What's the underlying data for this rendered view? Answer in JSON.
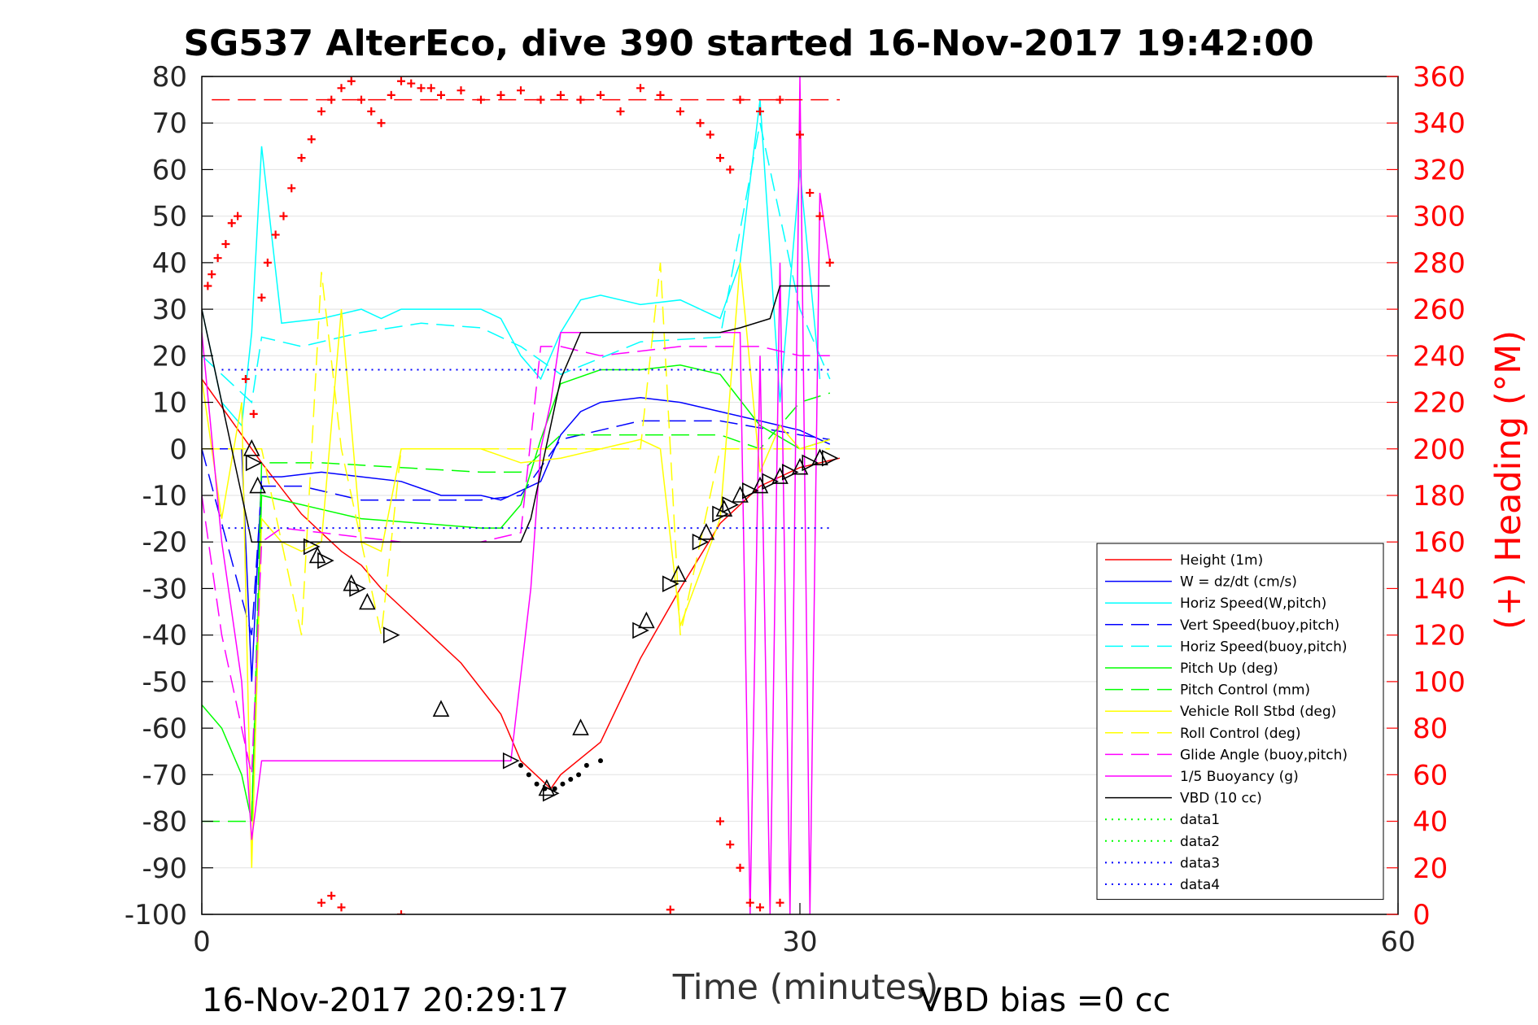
{
  "chart_data": {
    "type": "line",
    "title": "SG537 AlterEco, dive 390 started 16-Nov-2017 19:42:00",
    "xlabel": "Time (minutes)",
    "ylabel_right": "(+) Heading (°M)",
    "xlim": [
      0,
      60
    ],
    "ylim": [
      -100,
      80
    ],
    "ylim_right": [
      0,
      360
    ],
    "xticks": [
      0,
      30,
      60
    ],
    "yticks": [
      80,
      70,
      60,
      50,
      40,
      30,
      20,
      10,
      0,
      -10,
      -20,
      -30,
      -40,
      -50,
      -60,
      -70,
      -80,
      -90,
      -100
    ],
    "yticks_right": [
      360,
      340,
      320,
      300,
      280,
      260,
      240,
      220,
      200,
      180,
      160,
      140,
      120,
      100,
      80,
      60,
      40,
      20,
      0
    ],
    "grid": "horizontal",
    "legend_position": "bottom-right",
    "footer_left": "16-Nov-2017 20:29:17",
    "footer_right": "VBD bias =0 cc",
    "colors": {
      "height": "#ff0000",
      "w": "#0000ff",
      "horiz": "#00ffff",
      "pitch": "#00ff00",
      "roll": "#ffff00",
      "glide": "#ff00ff",
      "vbd": "#000000",
      "data3": "#0000ff",
      "heading": "#ff0000"
    },
    "series": [
      {
        "name": "Height (1m)",
        "color": "#ff0000",
        "style": "solid",
        "x": [
          0,
          2.5,
          3,
          5,
          7,
          8,
          9,
          11,
          13,
          15,
          16,
          17.5,
          18,
          20,
          22,
          24,
          26,
          28,
          30,
          32
        ],
        "y": [
          15,
          0,
          -3,
          -14,
          -22,
          -25,
          -30,
          -38,
          -46,
          -57,
          -67,
          -73,
          -70,
          -63,
          -45,
          -30,
          -16,
          -8,
          -4,
          -2
        ]
      },
      {
        "name": "W = dz/dt (cm/s)",
        "color": "#0000ff",
        "style": "solid",
        "x": [
          0,
          1,
          2,
          2.5,
          3,
          4,
          6,
          8,
          10,
          12,
          14,
          15,
          16,
          17,
          18,
          19,
          20,
          22,
          24,
          26,
          28,
          30,
          31,
          31.5
        ],
        "y": [
          0,
          0,
          0,
          -50,
          -6,
          -6,
          -5,
          -6,
          -7,
          -10,
          -10,
          -11,
          -9,
          -7,
          3,
          8,
          10,
          11,
          10,
          8,
          6,
          4,
          2,
          1
        ]
      },
      {
        "name": "Horiz Speed(W,pitch)",
        "color": "#00ffff",
        "style": "solid",
        "x": [
          0,
          1,
          2,
          2.5,
          3,
          4,
          6,
          8,
          9,
          10,
          11,
          12,
          13,
          14,
          15,
          16,
          17,
          18,
          19,
          20,
          22,
          24,
          26,
          27,
          28,
          29,
          30,
          31
        ],
        "y": [
          30,
          10,
          5,
          25,
          65,
          27,
          28,
          30,
          28,
          30,
          30,
          30,
          30,
          30,
          28,
          20,
          15,
          25,
          32,
          33,
          31,
          32,
          28,
          40,
          75,
          10,
          60,
          15
        ]
      },
      {
        "name": "Vert Speed(buoy,pitch)",
        "color": "#0000ff",
        "style": "dashed",
        "x": [
          0,
          2.5,
          3,
          5,
          8,
          11,
          14,
          16,
          18,
          22,
          26,
          30,
          31.5
        ],
        "y": [
          0,
          -40,
          -8,
          -8,
          -11,
          -11,
          -11,
          -10,
          2,
          6,
          6,
          3,
          2
        ]
      },
      {
        "name": "Horiz Speed(buoy,pitch)",
        "color": "#00ffff",
        "style": "dashed",
        "x": [
          0,
          2.5,
          3,
          5,
          8,
          11,
          14,
          16,
          18,
          22,
          26,
          28,
          30,
          31.5
        ],
        "y": [
          20,
          10,
          24,
          22,
          25,
          27,
          26,
          22,
          16,
          23,
          24,
          70,
          30,
          15
        ]
      },
      {
        "name": "Pitch Up (deg)",
        "color": "#00ff00",
        "style": "solid",
        "x": [
          0,
          1,
          2,
          2.5,
          3,
          5,
          8,
          11,
          14,
          15,
          16,
          17,
          18,
          20,
          22,
          24,
          26,
          28,
          30,
          31.5
        ],
        "y": [
          -55,
          -60,
          -70,
          -80,
          -10,
          -12,
          -15,
          -16,
          -17,
          -17,
          -12,
          2,
          14,
          17,
          17,
          18,
          16,
          5,
          0,
          2
        ]
      },
      {
        "name": "Pitch Control (mm)",
        "color": "#00ff00",
        "style": "dashed",
        "x": [
          0,
          2,
          2.5,
          3,
          6,
          10,
          14,
          16,
          18,
          22,
          26,
          28,
          30,
          31.5
        ],
        "y": [
          -80,
          -80,
          -80,
          -3,
          -3,
          -4,
          -5,
          -5,
          3,
          3,
          3,
          0,
          10,
          12
        ]
      },
      {
        "name": "Vehicle Roll Stbd (deg)",
        "color": "#ffff00",
        "style": "solid",
        "x": [
          0,
          1,
          2,
          2.5,
          3,
          4,
          5,
          6,
          7,
          8,
          9,
          10,
          12,
          14,
          16,
          18,
          20,
          22,
          23,
          24,
          26,
          27,
          28,
          29,
          30,
          31.5
        ],
        "y": [
          15,
          -15,
          10,
          -90,
          -15,
          -20,
          -22,
          -20,
          30,
          -20,
          -22,
          0,
          0,
          0,
          -3,
          -2,
          0,
          2,
          0,
          -38,
          -15,
          40,
          -5,
          5,
          0,
          2
        ]
      },
      {
        "name": "Roll Control (deg)",
        "color": "#ffff00",
        "style": "dashed",
        "x": [
          0,
          1,
          2,
          2.5,
          3,
          5,
          6,
          7,
          9,
          10,
          14,
          18,
          22,
          23,
          24,
          26,
          28,
          30,
          31.5
        ],
        "y": [
          0,
          0,
          0,
          0,
          0,
          -40,
          38,
          0,
          -40,
          0,
          0,
          0,
          0,
          40,
          -40,
          0,
          0,
          0,
          0
        ]
      },
      {
        "name": "Glide Angle (buoy,pitch)",
        "color": "#ff00ff",
        "style": "dashed",
        "x": [
          0,
          1,
          2,
          2.5,
          3,
          4,
          6,
          8,
          10,
          12,
          14,
          16,
          17,
          18,
          20,
          22,
          24,
          26,
          28,
          30,
          31.5
        ],
        "y": [
          -10,
          -40,
          -60,
          -70,
          -20,
          -17,
          -18,
          -19,
          -20,
          -20,
          -20,
          -18,
          22,
          22,
          20,
          21,
          22,
          22,
          22,
          20,
          20
        ]
      },
      {
        "name": "1/5 Buoyancy (g)",
        "color": "#ff00ff",
        "style": "solid",
        "x": [
          0,
          1,
          2,
          2.5,
          3,
          4,
          6,
          8,
          10,
          12,
          14,
          15.5,
          16.5,
          17,
          17.5,
          18,
          20,
          22,
          24,
          26,
          27,
          27.5,
          28,
          28.5,
          29,
          29.5,
          30,
          30.5,
          31,
          31.5
        ],
        "y": [
          25,
          -20,
          -50,
          -84,
          -67,
          -67,
          -67,
          -67,
          -67,
          -67,
          -67,
          -67,
          -30,
          0,
          10,
          25,
          25,
          25,
          25,
          25,
          25,
          -100,
          20,
          -100,
          40,
          -100,
          80,
          -100,
          55,
          40
        ]
      },
      {
        "name": "VBD (10 cc)",
        "color": "#000000",
        "style": "solid",
        "x": [
          0,
          2.5,
          3,
          10,
          15,
          16,
          16.5,
          17,
          17.5,
          18,
          18.5,
          19,
          26,
          27,
          28.5,
          29,
          30,
          31.5
        ],
        "y": [
          30,
          -20,
          -20,
          -20,
          -20,
          -20,
          -15,
          -5,
          5,
          15,
          20,
          25,
          25,
          26,
          28,
          35,
          35,
          35
        ]
      },
      {
        "name": "data1",
        "color": "#00ff00",
        "style": "dotted",
        "x": [],
        "y": []
      },
      {
        "name": "data2",
        "color": "#00ff00",
        "style": "dotted",
        "x": [],
        "y": []
      },
      {
        "name": "data3",
        "color": "#0000ff",
        "style": "dotted",
        "x": [
          1,
          31.5
        ],
        "y": [
          17,
          17
        ]
      },
      {
        "name": "data4",
        "color": "#0000ff",
        "style": "dotted",
        "x": [
          1,
          31.5
        ],
        "y": [
          -17,
          -17
        ]
      }
    ],
    "reference_lines": [
      {
        "axis": "right",
        "y": 350,
        "color": "#ff0000",
        "style": "dashed",
        "x": [
          0.5,
          32
        ]
      }
    ],
    "heading_markers": {
      "axis": "right",
      "color": "#ff0000",
      "x": [
        0.3,
        0.5,
        0.8,
        1.2,
        1.5,
        1.8,
        2.2,
        2.6,
        3,
        3.3,
        3.7,
        4.1,
        4.5,
        5,
        5.5,
        6,
        6.5,
        7,
        7.5,
        8,
        8.5,
        9,
        9.5,
        10,
        10.5,
        11,
        11.5,
        12,
        13,
        14,
        15,
        16,
        17,
        18,
        19,
        20,
        21,
        22,
        23,
        24,
        25,
        25.5,
        26,
        26.5,
        27,
        28,
        29,
        30,
        30.5,
        31,
        31.5,
        6,
        6.5,
        7,
        10,
        23.5,
        26,
        26.5,
        27,
        27.5,
        28,
        29
      ],
      "y": [
        270,
        275,
        282,
        288,
        297,
        300,
        230,
        215,
        265,
        280,
        292,
        300,
        312,
        325,
        333,
        345,
        350,
        355,
        358,
        350,
        345,
        340,
        352,
        358,
        357,
        355,
        355,
        352,
        354,
        350,
        352,
        354,
        350,
        352,
        350,
        352,
        345,
        355,
        352,
        345,
        340,
        335,
        325,
        320,
        350,
        345,
        350,
        335,
        310,
        300,
        280,
        5,
        8,
        3,
        0,
        2,
        40,
        30,
        20,
        5,
        3,
        5
      ]
    },
    "triangle_markers": {
      "x": [
        2.5,
        2.6,
        2.8,
        5.5,
        5.8,
        6.2,
        7.5,
        7.8,
        8.3,
        9.5,
        12,
        15.5,
        17.3,
        17.5,
        19,
        22,
        22.3,
        23.5,
        23.9,
        25,
        25.3,
        26,
        26.2,
        26.5,
        27,
        27.5,
        28,
        28.5,
        29,
        29.5,
        30,
        30.5,
        31,
        31.5
      ],
      "y": [
        0,
        -3,
        -8,
        -21,
        -23,
        -24,
        -29,
        -30,
        -33,
        -40,
        -56,
        -67,
        -73,
        -74,
        -60,
        -39,
        -37,
        -29,
        -27,
        -20,
        -18,
        -14,
        -13,
        -12,
        -10,
        -9,
        -8,
        -7,
        -6,
        -5,
        -4,
        -3,
        -2,
        -2
      ]
    },
    "dot_markers": {
      "x": [
        16,
        16.4,
        16.8,
        17.2,
        17.7,
        18.1,
        18.5,
        18.9,
        19.3,
        20
      ],
      "y": [
        -68,
        -70,
        -72,
        -73,
        -73,
        -72,
        -71,
        -70,
        -68,
        -67
      ]
    }
  }
}
